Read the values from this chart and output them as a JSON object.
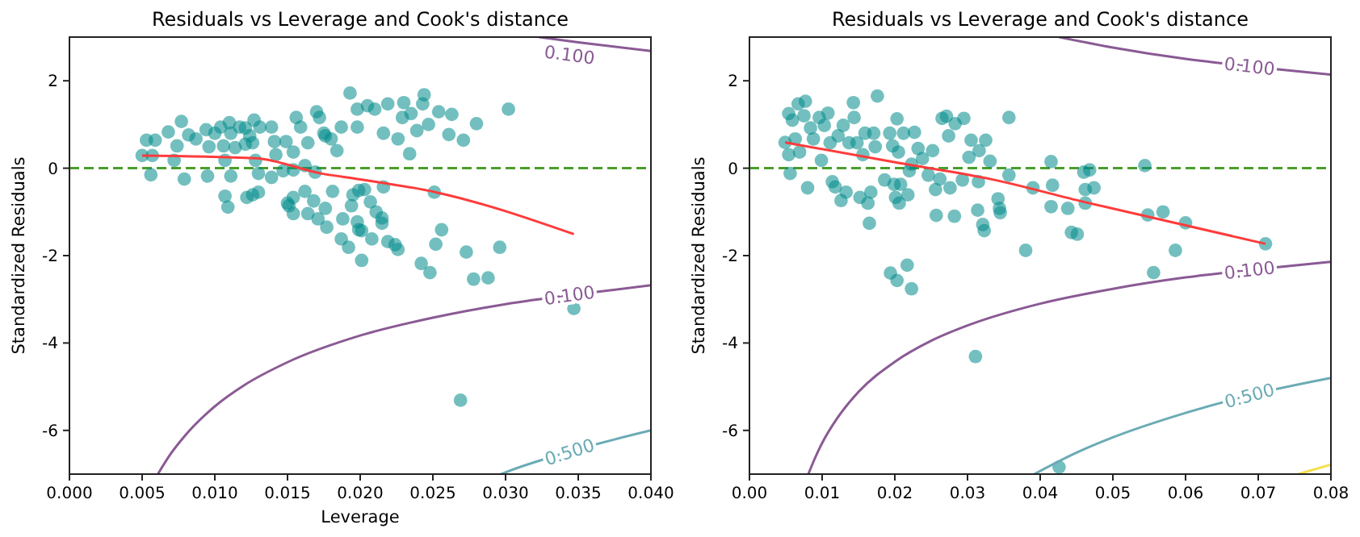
{
  "chart_data": [
    {
      "type": "scatter",
      "title": "Residuals vs Leverage and Cook's distance",
      "xlabel": "Leverage",
      "ylabel": "Standardized Residuals",
      "xlim": [
        0,
        0.04
      ],
      "xticks": [
        {
          "value": 0,
          "label": "0.000"
        },
        {
          "value": 0.005,
          "label": "0.005"
        },
        {
          "value": 0.01,
          "label": "0.010"
        },
        {
          "value": 0.015,
          "label": "0.015"
        },
        {
          "value": 0.02,
          "label": "0.020"
        },
        {
          "value": 0.025,
          "label": "0.025"
        },
        {
          "value": 0.03,
          "label": "0.030"
        },
        {
          "value": 0.035,
          "label": "0.035"
        },
        {
          "value": 0.04,
          "label": "0.040"
        }
      ],
      "ylim": [
        -7,
        3
      ],
      "yticks": [
        -6,
        -4,
        -2,
        0,
        2
      ],
      "grid": false,
      "ref_lines": [
        {
          "axis": "y",
          "value": 0,
          "color": "#4a9e2a",
          "line_style": "dashed"
        }
      ],
      "series": [
        {
          "marker": "circle",
          "color": "#008b8b",
          "x": [
            0.005,
            0.0057,
            0.0053,
            0.0059,
            0.0068,
            0.0077,
            0.0074,
            0.0072,
            0.0056,
            0.0079,
            0.0082,
            0.0087,
            0.0094,
            0.0096,
            0.0095,
            0.01,
            0.0104,
            0.0106,
            0.0107,
            0.011,
            0.0111,
            0.0114,
            0.0117,
            0.0121,
            0.0121,
            0.0124,
            0.0127,
            0.0126,
            0.0131,
            0.0128,
            0.013,
            0.0139,
            0.0141,
            0.0142,
            0.0139,
            0.0149,
            0.0147,
            0.0154,
            0.0156,
            0.0159,
            0.0164,
            0.0154,
            0.0162,
            0.0169,
            0.017,
            0.0172,
            0.0176,
            0.018,
            0.0175,
            0.0184,
            0.0187,
            0.0193,
            0.0198,
            0.0198,
            0.0205,
            0.021,
            0.0216,
            0.0219,
            0.0226,
            0.0229,
            0.023,
            0.0234,
            0.0235,
            0.0239,
            0.0244,
            0.0243,
            0.0247,
            0.0254,
            0.0261,
            0.0263,
            0.0271,
            0.028,
            0.0302,
            0.0107,
            0.0109,
            0.0111,
            0.0122,
            0.0126,
            0.013,
            0.015,
            0.0151,
            0.0154,
            0.0154,
            0.0162,
            0.0164,
            0.0168,
            0.0171,
            0.0176,
            0.0177,
            0.0181,
            0.0187,
            0.0188,
            0.0192,
            0.0194,
            0.0195,
            0.0198,
            0.0199,
            0.0201,
            0.0199,
            0.0203,
            0.0201,
            0.0207,
            0.0208,
            0.0211,
            0.0215,
            0.0215,
            0.0216,
            0.0219,
            0.0224,
            0.0226,
            0.0242,
            0.0248,
            0.0251,
            0.0252,
            0.0256,
            0.0273,
            0.0278,
            0.0288,
            0.0296,
            0.0347,
            0.0269
          ],
          "values": [
            0.29,
            0.29,
            0.64,
            0.64,
            0.83,
            1.07,
            0.51,
            0.18,
            -0.15,
            -0.25,
            0.76,
            0.67,
            0.88,
            0.49,
            -0.18,
            0.8,
            0.94,
            0.51,
            0.18,
            1.04,
            0.8,
            0.47,
            0.94,
            0.92,
            0.55,
            0.74,
            1.1,
            0.58,
            0.94,
            0.18,
            -0.12,
            0.94,
            0.61,
            0.31,
            -0.21,
            0.61,
            -0.06,
            0.37,
            1.16,
            0.94,
            0.58,
            -0.04,
            0.06,
            -0.09,
            1.29,
            1.16,
            0.74,
            0.67,
            0.8,
            0.4,
            0.94,
            1.72,
            1.35,
            0.94,
            1.43,
            1.35,
            0.8,
            1.47,
            0.67,
            1.16,
            1.5,
            0.33,
            1.25,
            0.86,
            1.68,
            1.47,
            1.0,
            1.29,
            0.77,
            1.23,
            0.64,
            1.02,
            1.35,
            -0.64,
            -0.89,
            -0.18,
            -0.67,
            -0.61,
            -0.55,
            -0.8,
            -0.86,
            -1.04,
            -0.67,
            -0.53,
            -1.04,
            -0.75,
            -1.16,
            -0.92,
            -1.35,
            -0.53,
            -1.62,
            -1.16,
            -1.81,
            -0.86,
            -0.61,
            -1.23,
            -1.41,
            -1.43,
            -0.51,
            -0.49,
            -2.11,
            -0.77,
            -1.62,
            -1.0,
            -1.26,
            -1.14,
            -0.43,
            -1.68,
            -1.75,
            -1.86,
            -2.18,
            -2.39,
            -0.55,
            -1.74,
            -1.41,
            -1.92,
            -2.54,
            -2.51,
            -1.81,
            -3.21,
            -5.31
          ]
        },
        {
          "type": "line",
          "color": "#ff3b3b",
          "x": [
            0.005,
            0.0128,
            0.0173,
            0.0199,
            0.0252,
            0.0347
          ],
          "values": [
            0.29,
            0.23,
            -0.12,
            -0.25,
            -0.55,
            -1.51
          ]
        },
        {
          "type": "line",
          "name": "0.100",
          "color": "#8a5a94",
          "x": [
            0.0061,
            0.007,
            0.008,
            0.01,
            0.012,
            0.015,
            0.02,
            0.025,
            0.03,
            0.035,
            0.04
          ],
          "values": [
            -6.99,
            -6.52,
            -6.1,
            -5.45,
            -4.97,
            -4.44,
            -3.83,
            -3.42,
            -3.11,
            -2.88,
            -2.68
          ]
        },
        {
          "type": "line",
          "name": "0.100",
          "color": "#8a5a94",
          "x": [
            0.0323,
            0.035,
            0.04
          ],
          "values": [
            3.0,
            2.88,
            2.68
          ]
        },
        {
          "type": "line",
          "name": "0.500",
          "color": "#6aabb5",
          "x": [
            0.0297,
            0.03,
            0.035,
            0.04
          ],
          "values": [
            -7.0,
            -6.96,
            -6.43,
            -6.0
          ]
        }
      ]
    },
    {
      "type": "scatter",
      "title": "Residuals vs Leverage and Cook's distance",
      "ylabel": "Standardized Residuals",
      "xlim": [
        0,
        0.08
      ],
      "xticks": [
        {
          "value": 0,
          "label": "0.00"
        },
        {
          "value": 0.01,
          "label": "0.01"
        },
        {
          "value": 0.02,
          "label": "0.02"
        },
        {
          "value": 0.03,
          "label": "0.03"
        },
        {
          "value": 0.04,
          "label": "0.04"
        },
        {
          "value": 0.05,
          "label": "0.05"
        },
        {
          "value": 0.06,
          "label": "0.06"
        },
        {
          "value": 0.07,
          "label": "0.07"
        },
        {
          "value": 0.08,
          "label": "0.08"
        }
      ],
      "ylim": [
        -7,
        3
      ],
      "yticks": [
        -6,
        -4,
        -2,
        0,
        2
      ],
      "grid": false,
      "ref_lines": [
        {
          "axis": "y",
          "value": 0,
          "color": "#4a9e2a",
          "line_style": "dashed"
        }
      ],
      "series": [
        {
          "marker": "circle",
          "color": "#008b8b",
          "x": [
            0.0049,
            0.0054,
            0.0059,
            0.0067,
            0.0077,
            0.0075,
            0.0054,
            0.0056,
            0.0063,
            0.0069,
            0.008,
            0.0084,
            0.0088,
            0.0096,
            0.0099,
            0.0103,
            0.0108,
            0.0111,
            0.0114,
            0.0118,
            0.0122,
            0.0126,
            0.0129,
            0.0133,
            0.0137,
            0.0143,
            0.0144,
            0.0148,
            0.0152,
            0.0156,
            0.0159,
            0.0163,
            0.0165,
            0.0167,
            0.0171,
            0.0173,
            0.0176,
            0.0186,
            0.0193,
            0.0197,
            0.0199,
            0.0201,
            0.0203,
            0.0205,
            0.0206,
            0.0208,
            0.0212,
            0.0218,
            0.022,
            0.0223,
            0.0227,
            0.0232,
            0.0238,
            0.0246,
            0.0252,
            0.0256,
            0.0257,
            0.0262,
            0.0265,
            0.0271,
            0.0274,
            0.0276,
            0.0282,
            0.0283,
            0.0295,
            0.0293,
            0.0302,
            0.0305,
            0.0314,
            0.0316,
            0.0315,
            0.0321,
            0.0323,
            0.0325,
            0.0331,
            0.0342,
            0.0344,
            0.0345,
            0.0357,
            0.0357,
            0.038,
            0.039,
            0.0415,
            0.0415,
            0.0417,
            0.0438,
            0.0443,
            0.0451,
            0.046,
            0.0462,
            0.0462,
            0.0468,
            0.0474,
            0.0544,
            0.0548,
            0.0569,
            0.0586,
            0.06,
            0.071,
            0.0556,
            0.0194,
            0.0203,
            0.0217,
            0.0223,
            0.0311,
            0.0426
          ],
          "values": [
            0.59,
            1.25,
            1.1,
            1.47,
            1.53,
            1.2,
            0.31,
            -0.12,
            0.67,
            0.37,
            -0.45,
            0.92,
            0.67,
            1.16,
            0.18,
            0.98,
            1.26,
            0.58,
            -0.31,
            -0.43,
            0.74,
            -0.74,
            0.98,
            -0.55,
            0.58,
            1.5,
            1.16,
            0.58,
            -0.67,
            0.31,
            0.8,
            -0.8,
            -1.26,
            -0.55,
            0.8,
            0.49,
            1.65,
            -0.27,
            0.8,
            0.51,
            -0.37,
            -0.67,
            1.13,
            0.37,
            -0.8,
            -0.37,
            0.8,
            -0.61,
            -0.06,
            0.09,
            0.82,
            0.45,
            0.22,
            -0.16,
            0.4,
            -0.49,
            -1.08,
            -0.25,
            1.14,
            1.19,
            0.74,
            -0.45,
            -1.1,
            1.02,
            1.14,
            -0.27,
            0.25,
            0.64,
            -0.96,
            0.4,
            -0.31,
            -1.29,
            -1.43,
            0.64,
            0.16,
            -0.7,
            -0.92,
            -1.02,
            1.16,
            -0.16,
            -1.88,
            -0.45,
            0.15,
            -0.88,
            -0.39,
            -0.92,
            -1.47,
            -1.51,
            -0.09,
            -0.49,
            -0.8,
            -0.04,
            -0.45,
            0.06,
            -1.07,
            -1.0,
            -1.88,
            -1.25,
            -1.73,
            -2.39,
            -2.4,
            -2.57,
            -2.22,
            -2.76,
            -4.31,
            -6.84
          ]
        },
        {
          "type": "line",
          "color": "#ff3b3b",
          "x": [
            0.0049,
            0.0205,
            0.0332,
            0.046,
            0.071
          ],
          "values": [
            0.59,
            0.12,
            -0.25,
            -0.77,
            -1.73
          ]
        },
        {
          "type": "line",
          "name": "0.100",
          "color": "#8a5a94",
          "x": [
            0.0081,
            0.009,
            0.01,
            0.012,
            0.015,
            0.02,
            0.025,
            0.03,
            0.04,
            0.05,
            0.06,
            0.07,
            0.08
          ],
          "values": [
            -7.0,
            -6.64,
            -6.29,
            -5.74,
            -5.12,
            -4.43,
            -3.95,
            -3.6,
            -3.1,
            -2.76,
            -2.5,
            -2.31,
            -2.14
          ]
        },
        {
          "type": "line",
          "name": "0.100",
          "color": "#8a5a94",
          "x": [
            0.0426,
            0.05,
            0.06,
            0.07,
            0.08
          ],
          "values": [
            3.0,
            2.76,
            2.5,
            2.31,
            2.14
          ]
        },
        {
          "type": "line",
          "name": "0.500",
          "color": "#6aabb5",
          "x": [
            0.0392,
            0.045,
            0.05,
            0.06,
            0.07,
            0.08
          ],
          "values": [
            -7.0,
            -6.51,
            -6.16,
            -5.6,
            -5.15,
            -4.8
          ]
        },
        {
          "type": "line",
          "color": "#f5e04a",
          "x": [
            0.0755,
            0.08
          ],
          "values": [
            -7.0,
            -6.78
          ]
        }
      ]
    }
  ]
}
